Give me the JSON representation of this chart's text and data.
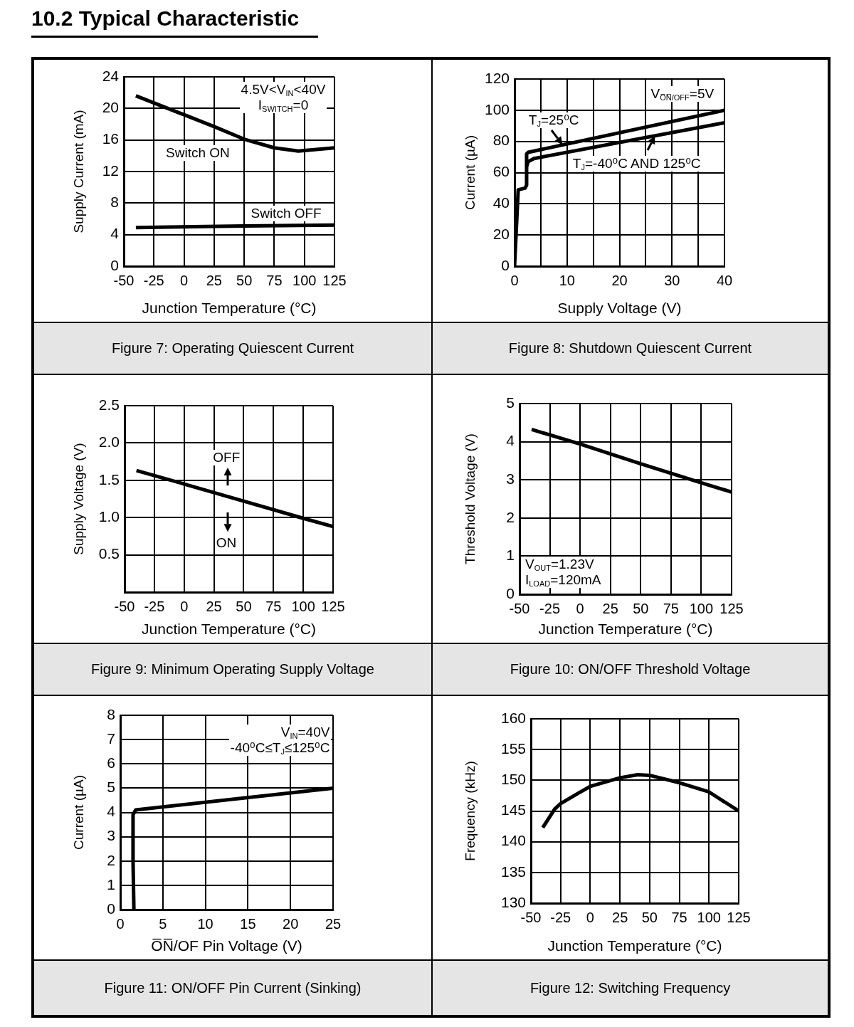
{
  "chart_data": [
    {
      "type": "other",
      "title": "10.2 Typical Characteristic"
    },
    {
      "type": "line",
      "title": "Figure 7: Operating Quiescent Current",
      "xlabel": "Junction Temperature (°C)",
      "ylabel": "Supply Current (mA)",
      "xlim": [
        -50,
        125
      ],
      "xticks": [
        -50,
        -25,
        0,
        25,
        50,
        75,
        100,
        125
      ],
      "ylim": [
        0,
        24
      ],
      "yticks": [
        0,
        4,
        8,
        12,
        16,
        20,
        24
      ],
      "grid": true,
      "annotations": [
        "4.5V<V$_{IN}$<40V",
        "I$_{SWITCH}$=0"
      ],
      "series": [
        {
          "name": "Switch ON",
          "color": "#000000",
          "x": [
            -40,
            -25,
            0,
            25,
            50,
            75,
            95,
            125
          ],
          "values": [
            21.6,
            20.7,
            19.2,
            17.7,
            16.1,
            15.0,
            14.6,
            15.0
          ]
        },
        {
          "name": "Switch OFF",
          "color": "#000000",
          "x": [
            -40,
            50,
            125
          ],
          "values": [
            4.9,
            5.1,
            5.2
          ]
        }
      ]
    },
    {
      "type": "line",
      "title": "Figure 8: Shutdown Quiescent Current",
      "xlabel": "Supply Voltage (V)",
      "ylabel": "Current (µA)",
      "xlim": [
        0,
        40
      ],
      "xticks": [
        0,
        {
          "value": 5,
          "label": null
        },
        10,
        {
          "value": 15,
          "label": null
        },
        20,
        {
          "value": 25,
          "label": null
        },
        30,
        {
          "value": 35,
          "label": null
        },
        40
      ],
      "ylim": [
        0,
        120
      ],
      "yticks": [
        0,
        20,
        40,
        60,
        80,
        100,
        120
      ],
      "grid": true,
      "annotations": [
        "V$_{O̅N̅/OFF}$=5V"
      ],
      "series": [
        {
          "name": "T$_{J}$=25⁰C",
          "color": "#000000",
          "x": [
            0,
            0.7,
            2.0,
            2.3,
            2.3,
            2.6,
            40
          ],
          "values": [
            0,
            49,
            50,
            52,
            72,
            73,
            100
          ]
        },
        {
          "name": "T$_{J}$=-40⁰C AND 125⁰C",
          "color": "#000000",
          "x": [
            2.3,
            2.6,
            3.7,
            40
          ],
          "values": [
            64,
            67,
            69,
            92
          ]
        }
      ]
    },
    {
      "type": "line",
      "title": "Figure 9: Minimum Operating Supply Voltage",
      "xlabel": "Junction Temperature (°C)",
      "ylabel": "Supply Voltage (V)",
      "xlim": [
        -50,
        125
      ],
      "xticks": [
        -50,
        -25,
        0,
        25,
        50,
        75,
        100,
        125
      ],
      "ylim": [
        0,
        2.5
      ],
      "yticks": [
        0.5,
        {
          "value": 1,
          "label": "1.0"
        },
        1.5,
        {
          "value": 2,
          "label": "2.0"
        },
        2.5
      ],
      "grid": true,
      "annotations": [
        "OFF",
        "ON"
      ],
      "series": [
        {
          "color": "#000000",
          "x": [
            -40,
            0,
            50,
            100,
            125
          ],
          "values": [
            1.63,
            1.45,
            1.22,
            0.99,
            0.88
          ]
        }
      ]
    },
    {
      "type": "line",
      "title": "Figure 10: ON/OFF Threshold Voltage",
      "xlabel": "Junction Temperature (°C)",
      "ylabel": "Threshold Voltage (V)",
      "xlim": [
        -50,
        125
      ],
      "xticks": [
        -50,
        -25,
        0,
        25,
        50,
        75,
        100,
        125
      ],
      "ylim": [
        0,
        5
      ],
      "yticks": [
        0,
        1,
        2,
        3,
        4,
        5
      ],
      "grid": true,
      "annotations": [
        "V$_{OUT}$=1.23V",
        "I$_{LOAD}$=120mA"
      ],
      "series": [
        {
          "color": "#000000",
          "x": [
            -40,
            0,
            50,
            100,
            125
          ],
          "values": [
            4.32,
            3.94,
            3.42,
            2.92,
            2.68
          ]
        }
      ]
    },
    {
      "type": "line",
      "title": "Figure 11: ON/OFF Pin Current (Sinking)",
      "xlabel": "O̅N̅/OF Pin Voltage (V)",
      "ylabel": "Current (µA)",
      "xlim": [
        0,
        25
      ],
      "xticks": [
        0,
        5,
        10,
        15,
        20,
        25
      ],
      "ylim": [
        0,
        8
      ],
      "yticks": [
        0,
        1,
        2,
        3,
        4,
        5,
        6,
        7,
        8
      ],
      "grid": true,
      "annotations": [
        "V$_{IN}$=40V",
        "-40⁰C≤T$_{J}$≤125⁰C"
      ],
      "series": [
        {
          "color": "#000000",
          "x": [
            1.6,
            1.5,
            1.5,
            1.8,
            25
          ],
          "values": [
            0,
            2,
            3.9,
            4.1,
            5.0
          ]
        }
      ]
    },
    {
      "type": "line",
      "title": "Figure 12: Switching Frequency",
      "xlabel": "Junction Temperature (°C)",
      "ylabel": "Frequency (kHz)",
      "xlim": [
        -50,
        125
      ],
      "xticks": [
        -50,
        -25,
        0,
        25,
        50,
        75,
        100,
        125
      ],
      "ylim": [
        130,
        160
      ],
      "yticks": [
        130,
        135,
        140,
        145,
        150,
        155,
        160
      ],
      "grid": true,
      "series": [
        {
          "color": "#000000",
          "x": [
            -40,
            -30,
            -25,
            -10,
            0,
            25,
            40,
            50,
            75,
            100,
            125
          ],
          "values": [
            142.3,
            145.3,
            146.2,
            147.9,
            149.0,
            150.4,
            150.9,
            150.8,
            149.6,
            148.1,
            145.0
          ]
        }
      ]
    }
  ]
}
